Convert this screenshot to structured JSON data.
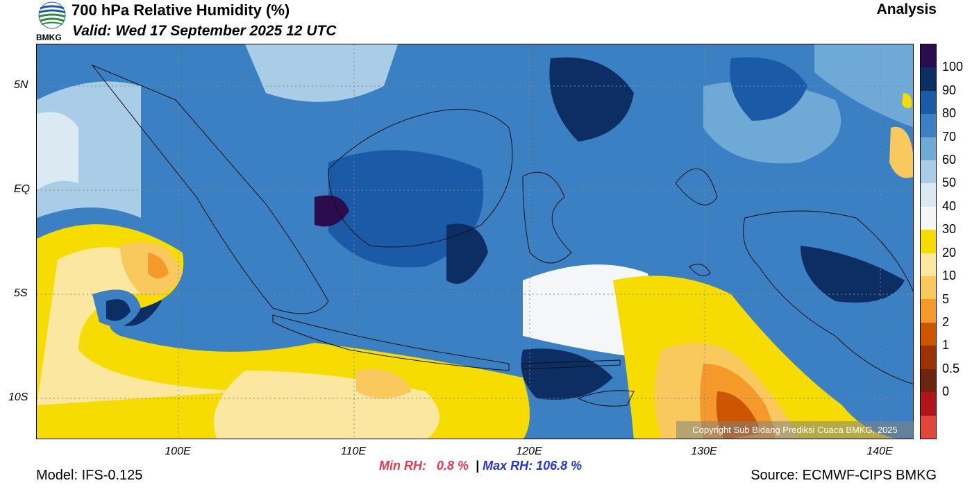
{
  "header": {
    "title": "700 hPa Relative Humidity (%)",
    "valid": "Valid: Wed 17 September 2025 12 UTC",
    "run_type": "Analysis",
    "logo_text": "BMKG"
  },
  "map": {
    "lat_labels": [
      "5N",
      "EQ",
      "5S",
      "10S"
    ],
    "lon_labels": [
      "100E",
      "110E",
      "120E",
      "130E",
      "140E"
    ],
    "copyright": "Copyright Sub Bidang Prediksi Cuaca BMKG, 2025"
  },
  "colorbar": {
    "labels": [
      "100",
      "90",
      "80",
      "70",
      "60",
      "50",
      "40",
      "30",
      "20",
      "10",
      "5",
      "2",
      "1",
      "0.5",
      "0"
    ],
    "colors": [
      "#2b0d4f",
      "#0c2e63",
      "#1b5aa6",
      "#3a80c2",
      "#6fa9d6",
      "#a9cde6",
      "#dbe9f3",
      "#f4f6f8",
      "#f7dc00",
      "#fbe7a0",
      "#f9c95e",
      "#f59a2a",
      "#cc5500",
      "#9c3308",
      "#6e2410",
      "#b0151b",
      "#e0473a"
    ]
  },
  "footer": {
    "min_rh_label": "Min RH:",
    "min_rh_value": "0.8 %",
    "separator": "|",
    "max_rh_label": "Max RH:",
    "max_rh_value": "106.8 %",
    "model": "Model: IFS-0.125",
    "source": "Source: ECMWF-CIPS BMKG"
  }
}
